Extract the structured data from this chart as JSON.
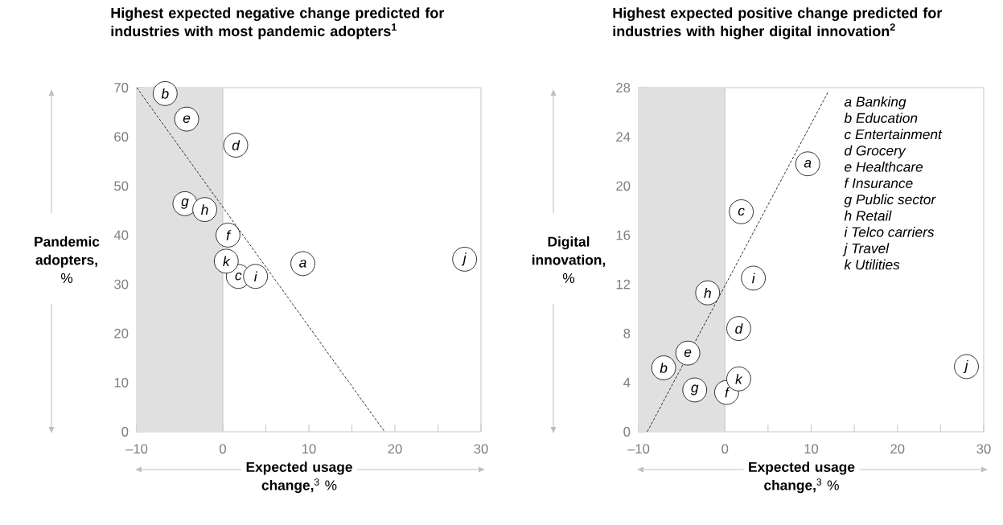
{
  "chart_data": [
    {
      "type": "scatter",
      "title": "Highest expected negative change predicted for industries with most pandemic adopters$^{1}$",
      "xlabel": "**Expected usage change,**$^{3}$ %",
      "ylabel": "**Pandemic adopters,** %",
      "xlim": [
        -10,
        30
      ],
      "ylim": [
        0,
        70
      ],
      "xticks": [
        {
          "value": -10,
          "label": "–10"
        },
        {
          "value": -5,
          "label": null
        },
        0,
        {
          "value": 5,
          "label": null
        },
        10,
        {
          "value": 15,
          "label": null
        },
        20,
        {
          "value": 25,
          "label": null
        },
        30
      ],
      "yticks": [
        0,
        10,
        20,
        30,
        40,
        50,
        60,
        70
      ],
      "bands": [
        {
          "axis": "x",
          "from": -10,
          "to": 0,
          "color": "#e0e0e0"
        }
      ],
      "series": [
        {
          "marker": "circle",
          "color": "#ffffff",
          "x": [
            9.3,
            -6.7,
            1.8,
            1.5,
            -4.2,
            0.6,
            -4.4,
            -2.1,
            3.8,
            28.1,
            0.4
          ],
          "values": [
            34.2,
            68.8,
            31.6,
            58.3,
            63.6,
            40.0,
            46.4,
            45.2,
            31.6,
            35.1,
            34.7
          ]
        },
        {
          "type": "line",
          "marker": "none",
          "line_style": "dashed",
          "color": "#000000",
          "x": [
            -10,
            18.8
          ],
          "values": [
            70,
            0
          ]
        }
      ],
      "annotations": [
        {
          "text": "a",
          "x": 9.3,
          "y": 34.2
        },
        {
          "text": "b",
          "x": -6.7,
          "y": 68.8
        },
        {
          "text": "c",
          "x": 1.8,
          "y": 31.6
        },
        {
          "text": "d",
          "x": 1.5,
          "y": 58.3
        },
        {
          "text": "e",
          "x": -4.2,
          "y": 63.6
        },
        {
          "text": "f",
          "x": 0.6,
          "y": 40.0
        },
        {
          "text": "g",
          "x": -4.4,
          "y": 46.4
        },
        {
          "text": "h",
          "x": -2.1,
          "y": 45.2
        },
        {
          "text": "i",
          "x": 3.8,
          "y": 31.6
        },
        {
          "text": "j",
          "x": 28.1,
          "y": 35.1
        },
        {
          "text": "k",
          "x": 0.4,
          "y": 34.7
        }
      ]
    },
    {
      "type": "scatter",
      "title": "Highest expected positive change predicted for industries with higher digital innovation$^{2}$",
      "xlabel": "**Expected usage change,**$^{3}$ %",
      "ylabel": "**Digital innovation,** %",
      "xlim": [
        -10,
        30
      ],
      "ylim": [
        0,
        28
      ],
      "xticks": [
        {
          "value": -10,
          "label": "–10"
        },
        {
          "value": -5,
          "label": null
        },
        0,
        {
          "value": 5,
          "label": null
        },
        10,
        {
          "value": 15,
          "label": null
        },
        20,
        {
          "value": 25,
          "label": null
        },
        30
      ],
      "yticks": [
        0,
        4,
        8,
        12,
        16,
        20,
        24,
        28
      ],
      "bands": [
        {
          "axis": "x",
          "from": -10,
          "to": 0,
          "color": "#e0e0e0"
        }
      ],
      "series": [
        {
          "marker": "circle",
          "color": "#ffffff",
          "x": [
            9.6,
            -7.1,
            1.9,
            1.6,
            -4.3,
            0.2,
            -3.5,
            -2.0,
            3.3,
            28.0,
            1.6
          ],
          "values": [
            21.8,
            5.2,
            17.9,
            8.4,
            6.4,
            3.2,
            3.4,
            11.3,
            12.5,
            5.3,
            4.3
          ]
        },
        {
          "type": "line",
          "marker": "none",
          "line_style": "dashed",
          "color": "#000000",
          "x": [
            -9.0,
            12.0
          ],
          "values": [
            0,
            27.7
          ]
        }
      ],
      "annotations": [
        {
          "text": "a",
          "x": 9.6,
          "y": 21.8
        },
        {
          "text": "b",
          "x": -7.1,
          "y": 5.2
        },
        {
          "text": "c",
          "x": 1.9,
          "y": 17.9
        },
        {
          "text": "d",
          "x": 1.6,
          "y": 8.4
        },
        {
          "text": "e",
          "x": -4.3,
          "y": 6.4
        },
        {
          "text": "f",
          "x": 0.2,
          "y": 3.2
        },
        {
          "text": "g",
          "x": -3.5,
          "y": 3.4
        },
        {
          "text": "h",
          "x": -2.0,
          "y": 11.3
        },
        {
          "text": "i",
          "x": 3.3,
          "y": 12.5
        },
        {
          "text": "j",
          "x": 28.0,
          "y": 5.3
        },
        {
          "text": "k",
          "x": 1.6,
          "y": 4.3
        },
        "a Banking",
        "b Education",
        "c Entertainment",
        "d Grocery",
        "e Healthcare",
        "f Insurance",
        "g Public sector",
        "h Retail",
        "i Telco carriers",
        "j Travel",
        "k Utilities"
      ]
    }
  ]
}
